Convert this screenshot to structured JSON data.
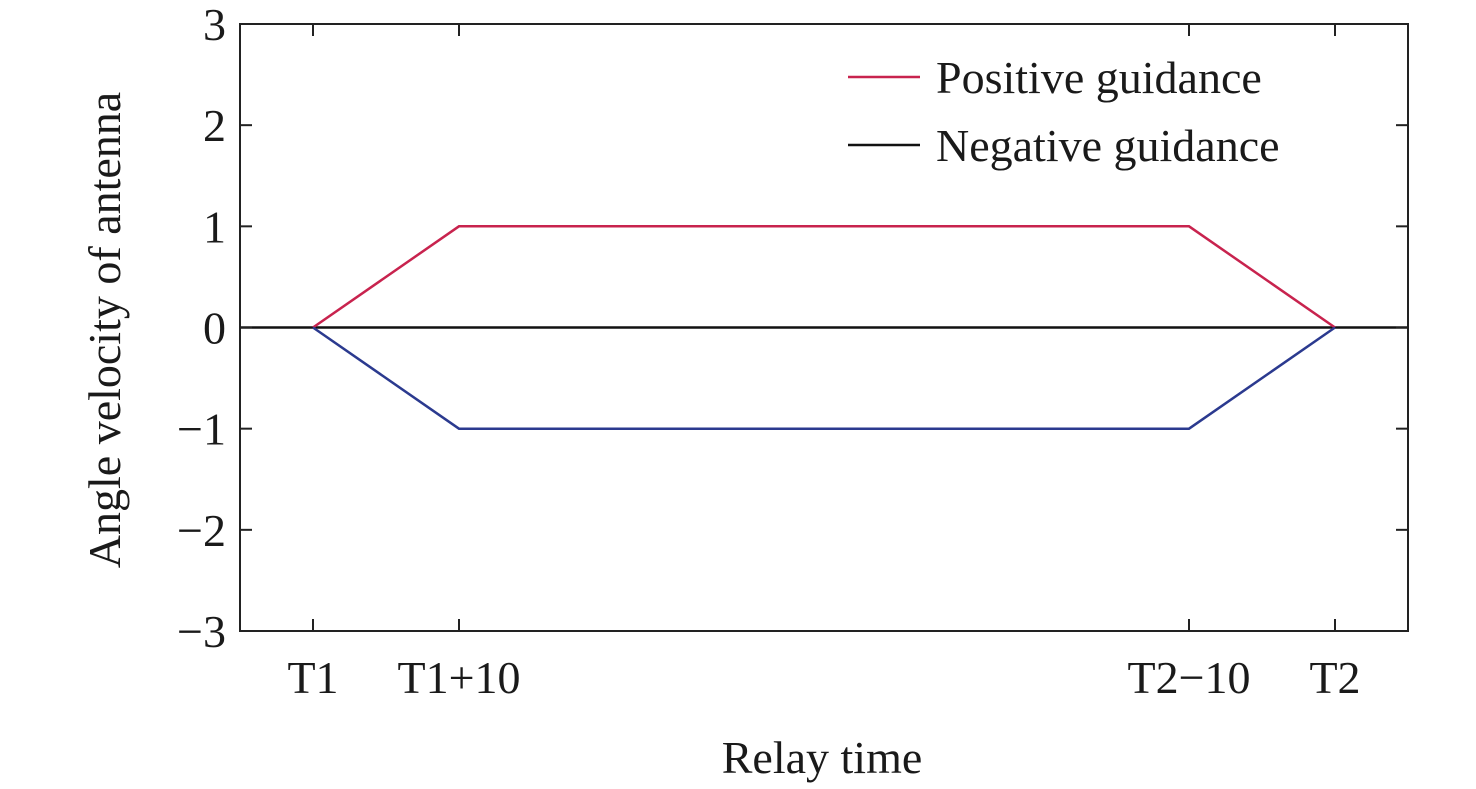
{
  "chart_data": {
    "type": "line",
    "title": "",
    "xlabel": "Relay time",
    "ylabel": "Angle velocity of antenna",
    "ylim": [
      -3,
      3
    ],
    "yticks": [
      {
        "value": 3,
        "label": "3"
      },
      {
        "value": 2,
        "label": "2"
      },
      {
        "value": 1,
        "label": "1"
      },
      {
        "value": 0,
        "label": "0"
      },
      {
        "value": -1,
        "label": "−1"
      },
      {
        "value": -2,
        "label": "−2"
      },
      {
        "value": -3,
        "label": "−3"
      }
    ],
    "xlim": [
      -1,
      15
    ],
    "xticks": [
      {
        "value": 0,
        "label": "T1"
      },
      {
        "value": 2,
        "label": "T1+10"
      },
      {
        "value": 12,
        "label": "T2−10"
      },
      {
        "value": 14,
        "label": "T2"
      }
    ],
    "grid": false,
    "legend_position": "top-right",
    "series": [
      {
        "name": "Positive guidance",
        "color": "#c8234e",
        "x": [
          0,
          2,
          12,
          14
        ],
        "y": [
          0,
          1,
          1,
          0
        ]
      },
      {
        "name": "Negative guidance",
        "color": "#2b3a8f",
        "x": [
          0,
          2,
          12,
          14
        ],
        "y": [
          0,
          -1,
          -1,
          0
        ]
      }
    ],
    "reference_line": {
      "y": 0,
      "color": "#111111"
    },
    "legend_line_colors": [
      "#c8234e",
      "#111111"
    ]
  }
}
